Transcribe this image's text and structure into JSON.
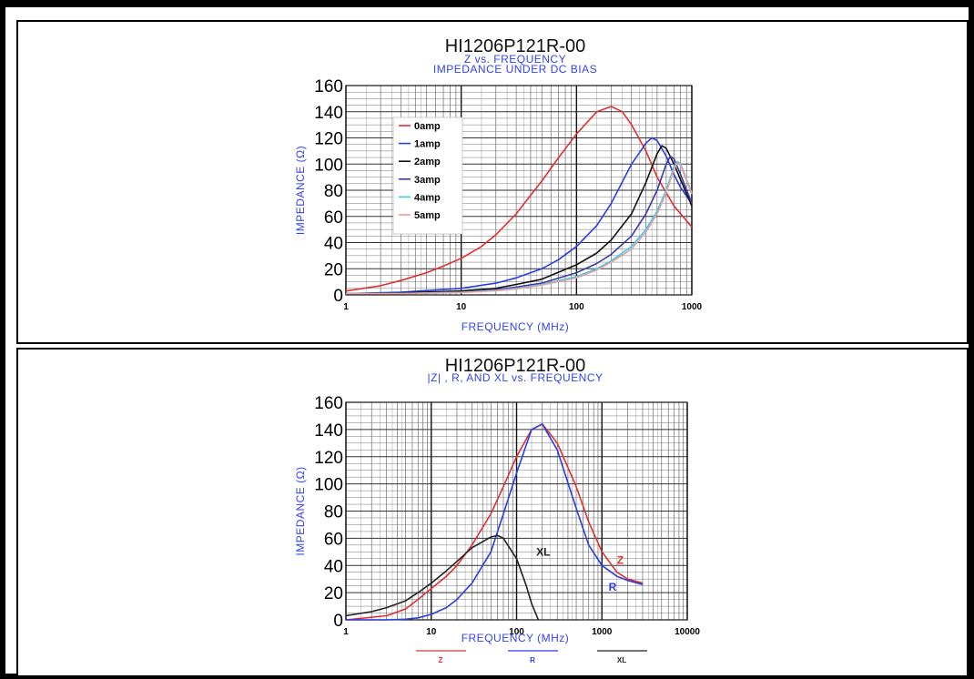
{
  "chart_data": [
    {
      "type": "line",
      "title": "HI1206P121R-00",
      "subtitle": [
        "Z vs. FREQUENCY",
        "IMPEDANCE UNDER DC BIAS"
      ],
      "xlabel": "FREQUENCY (MHz)",
      "ylabel": "IMPEDANCE (Ω)",
      "xscale": "log",
      "xlim": [
        1,
        1000
      ],
      "ylim": [
        0,
        160
      ],
      "xticks": [
        "1",
        "10",
        "100",
        "1000"
      ],
      "yticks": [
        "0",
        "20",
        "40",
        "60",
        "80",
        "100",
        "120",
        "140",
        "160"
      ],
      "grid": true,
      "legend_position": "top-left",
      "series": [
        {
          "name": "0amp",
          "color": "#e03030",
          "x": [
            1,
            2,
            3,
            5,
            7,
            10,
            15,
            20,
            30,
            50,
            70,
            100,
            150,
            200,
            250,
            300,
            400,
            500,
            700,
            1000
          ],
          "y": [
            3,
            7,
            11,
            17,
            22,
            28,
            37,
            46,
            62,
            87,
            105,
            123,
            140,
            144,
            140,
            130,
            110,
            90,
            68,
            52
          ]
        },
        {
          "name": "1amp",
          "color": "#2a3fe0",
          "x": [
            1,
            3,
            10,
            20,
            30,
            50,
            70,
            100,
            150,
            200,
            300,
            400,
            450,
            500,
            600,
            700,
            800,
            1000
          ],
          "y": [
            1,
            2,
            5,
            9,
            13,
            20,
            27,
            37,
            53,
            70,
            100,
            116,
            120,
            118,
            106,
            92,
            82,
            70
          ]
        },
        {
          "name": "2amp",
          "color": "#111111",
          "x": [
            1,
            3,
            10,
            20,
            30,
            50,
            100,
            150,
            200,
            300,
            400,
            500,
            550,
            600,
            700,
            800,
            1000
          ],
          "y": [
            1,
            1.5,
            3,
            5,
            8,
            12,
            23,
            32,
            42,
            62,
            86,
            108,
            114,
            112,
            100,
            88,
            68
          ]
        },
        {
          "name": "3amp",
          "color": "#3a3aa8",
          "x": [
            1,
            3,
            10,
            20,
            30,
            50,
            100,
            150,
            200,
            300,
            400,
            500,
            600,
            650,
            700,
            800,
            1000
          ],
          "y": [
            1,
            1.2,
            2,
            4,
            6,
            9,
            17,
            24,
            31,
            45,
            62,
            80,
            100,
            106,
            104,
            92,
            70
          ]
        },
        {
          "name": "4amp",
          "color": "#3fc8e8",
          "x": [
            1,
            3,
            10,
            20,
            30,
            50,
            100,
            150,
            200,
            300,
            400,
            500,
            600,
            700,
            750,
            800,
            1000
          ],
          "y": [
            1,
            1,
            2,
            3.5,
            5,
            8,
            14,
            20,
            26,
            37,
            50,
            64,
            80,
            98,
            102,
            100,
            78
          ]
        },
        {
          "name": "5amp",
          "color": "#e8a0a0",
          "x": [
            1,
            3,
            10,
            20,
            30,
            50,
            100,
            150,
            200,
            300,
            400,
            500,
            600,
            700,
            750,
            800,
            1000
          ],
          "y": [
            1,
            1,
            1.8,
            3.2,
            4.6,
            7.5,
            13,
            19,
            25,
            35,
            48,
            62,
            78,
            96,
            101,
            99,
            77
          ]
        }
      ]
    },
    {
      "type": "line",
      "title": "HI1206P121R-00",
      "subtitle": [
        "|Z| , R, AND XL vs. FREQUENCY"
      ],
      "xlabel": "FREQUENCY (MHz)",
      "ylabel": "IMPEDANCE (Ω)",
      "xscale": "log",
      "xlim": [
        1,
        10000
      ],
      "ylim": [
        0,
        160
      ],
      "xticks": [
        "1",
        "10",
        "100",
        "1000",
        "10000"
      ],
      "yticks": [
        "0",
        "20",
        "40",
        "60",
        "80",
        "100",
        "120",
        "140",
        "160"
      ],
      "grid": true,
      "legend_position": "bottom",
      "series": [
        {
          "name": "Z",
          "label": "Z",
          "color": "#e03030",
          "x": [
            1,
            3,
            5,
            7,
            10,
            15,
            20,
            30,
            50,
            70,
            100,
            150,
            200,
            300,
            500,
            700,
            1000,
            1500,
            2000,
            3000
          ],
          "y": [
            0,
            3,
            8,
            15,
            23,
            32,
            40,
            55,
            78,
            98,
            120,
            140,
            144,
            130,
            98,
            72,
            50,
            35,
            30,
            27
          ]
        },
        {
          "name": "R",
          "label": "R",
          "color": "#2a3fe0",
          "x": [
            1,
            3,
            5,
            7,
            10,
            15,
            20,
            30,
            50,
            70,
            100,
            150,
            200,
            300,
            500,
            700,
            1000,
            1500,
            2000,
            3000
          ],
          "y": [
            0,
            0,
            0.5,
            1.5,
            4,
            9,
            15,
            27,
            50,
            78,
            108,
            140,
            144,
            125,
            82,
            55,
            40,
            32,
            29,
            26
          ]
        },
        {
          "name": "XL",
          "label": "XL",
          "color": "#222222",
          "x": [
            1,
            2,
            3,
            5,
            7,
            10,
            15,
            20,
            30,
            50,
            60,
            70,
            100,
            130,
            150,
            180
          ],
          "y": [
            3,
            6,
            9,
            14,
            20,
            27,
            36,
            43,
            53,
            61,
            62,
            60,
            45,
            25,
            12,
            0
          ]
        }
      ],
      "bottom_legend": [
        "Z",
        "R",
        "XL"
      ]
    }
  ]
}
